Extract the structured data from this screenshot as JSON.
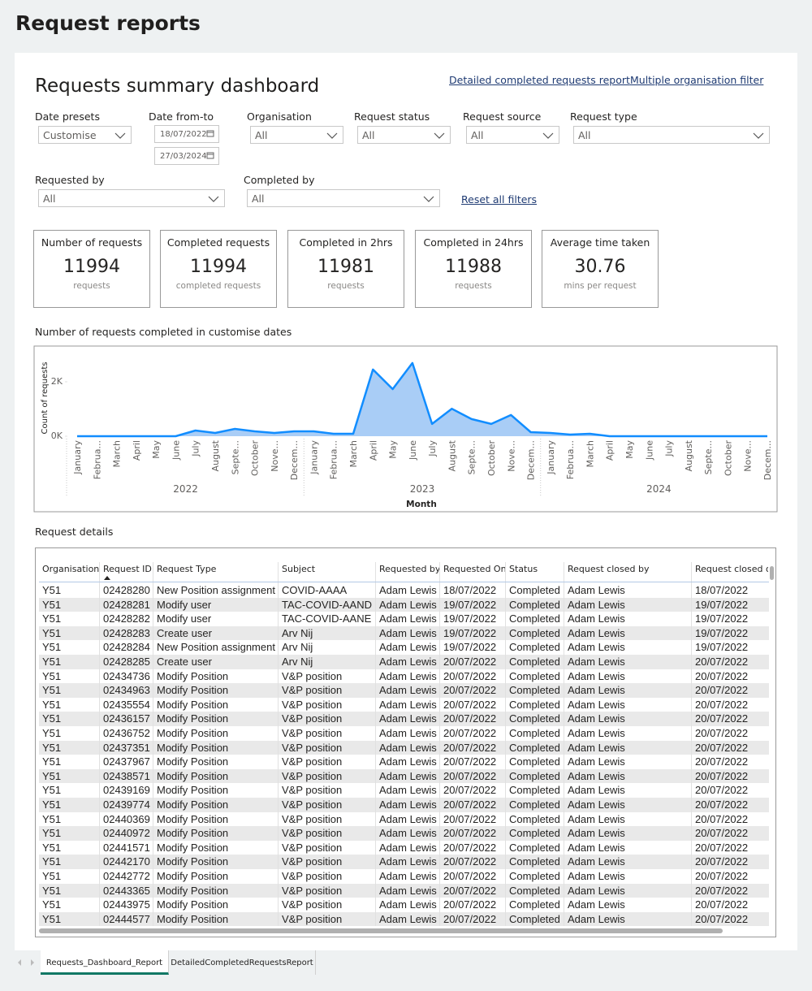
{
  "header": {
    "title": "Request reports"
  },
  "dashboard": {
    "title": "Requests summary dashboard",
    "links": [
      "Detailed completed requests report",
      "Multiple organisation filter"
    ],
    "reset": "Reset all filters"
  },
  "filters": [
    {
      "label": "Date presets",
      "value": "Customise"
    },
    {
      "label": "Date from-to",
      "dates": [
        "18/07/2022",
        "27/03/2024"
      ]
    },
    {
      "label": "Organisation",
      "value": "All"
    },
    {
      "label": "Request status",
      "value": "All"
    },
    {
      "label": "Request source",
      "value": "All"
    },
    {
      "label": "Request type",
      "value": "All"
    },
    {
      "label": "Requested by",
      "value": "All"
    },
    {
      "label": "Completed by",
      "value": "All"
    }
  ],
  "cards": [
    {
      "title": "Number of requests",
      "value": 11994,
      "unit": "requests"
    },
    {
      "title": "Completed requests",
      "value": 11994,
      "unit": "completed requests"
    },
    {
      "title": "Completed in 2hrs",
      "value": 11981,
      "unit": "requests"
    },
    {
      "title": "Completed in 24hrs",
      "value": 11988,
      "unit": "requests"
    },
    {
      "title": "Average time taken",
      "value": 30.76,
      "unit": "mins per request"
    }
  ],
  "chart_data": {
    "type": "area",
    "title": "Number of requests completed in customise dates",
    "y_label": "Count of requests",
    "x_label": "Month",
    "categories": [
      "January",
      "Februa...",
      "March",
      "April",
      "May",
      "June",
      "July",
      "August",
      "Septe...",
      "October",
      "Nove...",
      "Decem...",
      "January",
      "Februa...",
      "March",
      "April",
      "May",
      "June",
      "July",
      "August",
      "Septe...",
      "October",
      "Nove...",
      "Decem...",
      "January",
      "Februa...",
      "March",
      "April",
      "May",
      "June",
      "July",
      "August",
      "Septe...",
      "October",
      "Nove...",
      "Decem..."
    ],
    "years": [
      "2022",
      "2023",
      "2024"
    ],
    "values": [
      0,
      0,
      0,
      0,
      0,
      0,
      210,
      120,
      270,
      180,
      120,
      180,
      180,
      90,
      90,
      2450,
      1730,
      2690,
      450,
      1010,
      630,
      450,
      780,
      150,
      120,
      60,
      90,
      0,
      0,
      0,
      0,
      0,
      0,
      0,
      0,
      0
    ],
    "color": "#118dff",
    "fill": "#a9cdf6",
    "ylim": [
      0,
      2800
    ],
    "yticks": [
      {
        "value": 0,
        "label": "0K"
      },
      {
        "value": 2000,
        "label": "2K"
      }
    ],
    "grid": false
  },
  "table": {
    "title": "Request details",
    "columns": [
      "Organisation",
      "Request ID",
      "Request Type",
      "Subject",
      "Requested by",
      "Requested On",
      "Status",
      "Request closed by",
      "Request closed on"
    ],
    "rows": [
      [
        "Y51",
        "02428280",
        "New Position assignment",
        "COVID-AAAA",
        "Adam Lewis",
        "18/07/2022",
        "Completed",
        "Adam Lewis",
        "18/07/2022"
      ],
      [
        "Y51",
        "02428281",
        "Modify user",
        "TAC-COVID-AAND",
        "Adam Lewis",
        "19/07/2022",
        "Completed",
        "Adam Lewis",
        "19/07/2022"
      ],
      [
        "Y51",
        "02428282",
        "Modify user",
        "TAC-COVID-AANE",
        "Adam Lewis",
        "19/07/2022",
        "Completed",
        "Adam Lewis",
        "19/07/2022"
      ],
      [
        "Y51",
        "02428283",
        "Create user",
        "Arv Nij",
        "Adam Lewis",
        "19/07/2022",
        "Completed",
        "Adam Lewis",
        "19/07/2022"
      ],
      [
        "Y51",
        "02428284",
        "New Position assignment",
        "Arv Nij",
        "Adam Lewis",
        "19/07/2022",
        "Completed",
        "Adam Lewis",
        "19/07/2022"
      ],
      [
        "Y51",
        "02428285",
        "Create user",
        "Arv Nij",
        "Adam Lewis",
        "20/07/2022",
        "Completed",
        "Adam Lewis",
        "20/07/2022"
      ],
      [
        "Y51",
        "02434736",
        "Modify Position",
        "V&P position",
        "Adam Lewis",
        "20/07/2022",
        "Completed",
        "Adam Lewis",
        "20/07/2022"
      ],
      [
        "Y51",
        "02434963",
        "Modify Position",
        "V&P position",
        "Adam Lewis",
        "20/07/2022",
        "Completed",
        "Adam Lewis",
        "20/07/2022"
      ],
      [
        "Y51",
        "02435554",
        "Modify Position",
        "V&P position",
        "Adam Lewis",
        "20/07/2022",
        "Completed",
        "Adam Lewis",
        "20/07/2022"
      ],
      [
        "Y51",
        "02436157",
        "Modify Position",
        "V&P position",
        "Adam Lewis",
        "20/07/2022",
        "Completed",
        "Adam Lewis",
        "20/07/2022"
      ],
      [
        "Y51",
        "02436752",
        "Modify Position",
        "V&P position",
        "Adam Lewis",
        "20/07/2022",
        "Completed",
        "Adam Lewis",
        "20/07/2022"
      ],
      [
        "Y51",
        "02437351",
        "Modify Position",
        "V&P position",
        "Adam Lewis",
        "20/07/2022",
        "Completed",
        "Adam Lewis",
        "20/07/2022"
      ],
      [
        "Y51",
        "02437967",
        "Modify Position",
        "V&P position",
        "Adam Lewis",
        "20/07/2022",
        "Completed",
        "Adam Lewis",
        "20/07/2022"
      ],
      [
        "Y51",
        "02438571",
        "Modify Position",
        "V&P position",
        "Adam Lewis",
        "20/07/2022",
        "Completed",
        "Adam Lewis",
        "20/07/2022"
      ],
      [
        "Y51",
        "02439169",
        "Modify Position",
        "V&P position",
        "Adam Lewis",
        "20/07/2022",
        "Completed",
        "Adam Lewis",
        "20/07/2022"
      ],
      [
        "Y51",
        "02439774",
        "Modify Position",
        "V&P position",
        "Adam Lewis",
        "20/07/2022",
        "Completed",
        "Adam Lewis",
        "20/07/2022"
      ],
      [
        "Y51",
        "02440369",
        "Modify Position",
        "V&P position",
        "Adam Lewis",
        "20/07/2022",
        "Completed",
        "Adam Lewis",
        "20/07/2022"
      ],
      [
        "Y51",
        "02440972",
        "Modify Position",
        "V&P position",
        "Adam Lewis",
        "20/07/2022",
        "Completed",
        "Adam Lewis",
        "20/07/2022"
      ],
      [
        "Y51",
        "02441571",
        "Modify Position",
        "V&P position",
        "Adam Lewis",
        "20/07/2022",
        "Completed",
        "Adam Lewis",
        "20/07/2022"
      ],
      [
        "Y51",
        "02442170",
        "Modify Position",
        "V&P position",
        "Adam Lewis",
        "20/07/2022",
        "Completed",
        "Adam Lewis",
        "20/07/2022"
      ],
      [
        "Y51",
        "02442772",
        "Modify Position",
        "V&P position",
        "Adam Lewis",
        "20/07/2022",
        "Completed",
        "Adam Lewis",
        "20/07/2022"
      ],
      [
        "Y51",
        "02443365",
        "Modify Position",
        "V&P position",
        "Adam Lewis",
        "20/07/2022",
        "Completed",
        "Adam Lewis",
        "20/07/2022"
      ],
      [
        "Y51",
        "02443975",
        "Modify Position",
        "V&P position",
        "Adam Lewis",
        "20/07/2022",
        "Completed",
        "Adam Lewis",
        "20/07/2022"
      ],
      [
        "Y51",
        "02444577",
        "Modify Position",
        "V&P position",
        "Adam Lewis",
        "20/07/2022",
        "Completed",
        "Adam Lewis",
        "20/07/2022"
      ]
    ]
  },
  "tabs": [
    "Requests_Dashboard_Report",
    "DetailedCompletedRequestsReport"
  ]
}
